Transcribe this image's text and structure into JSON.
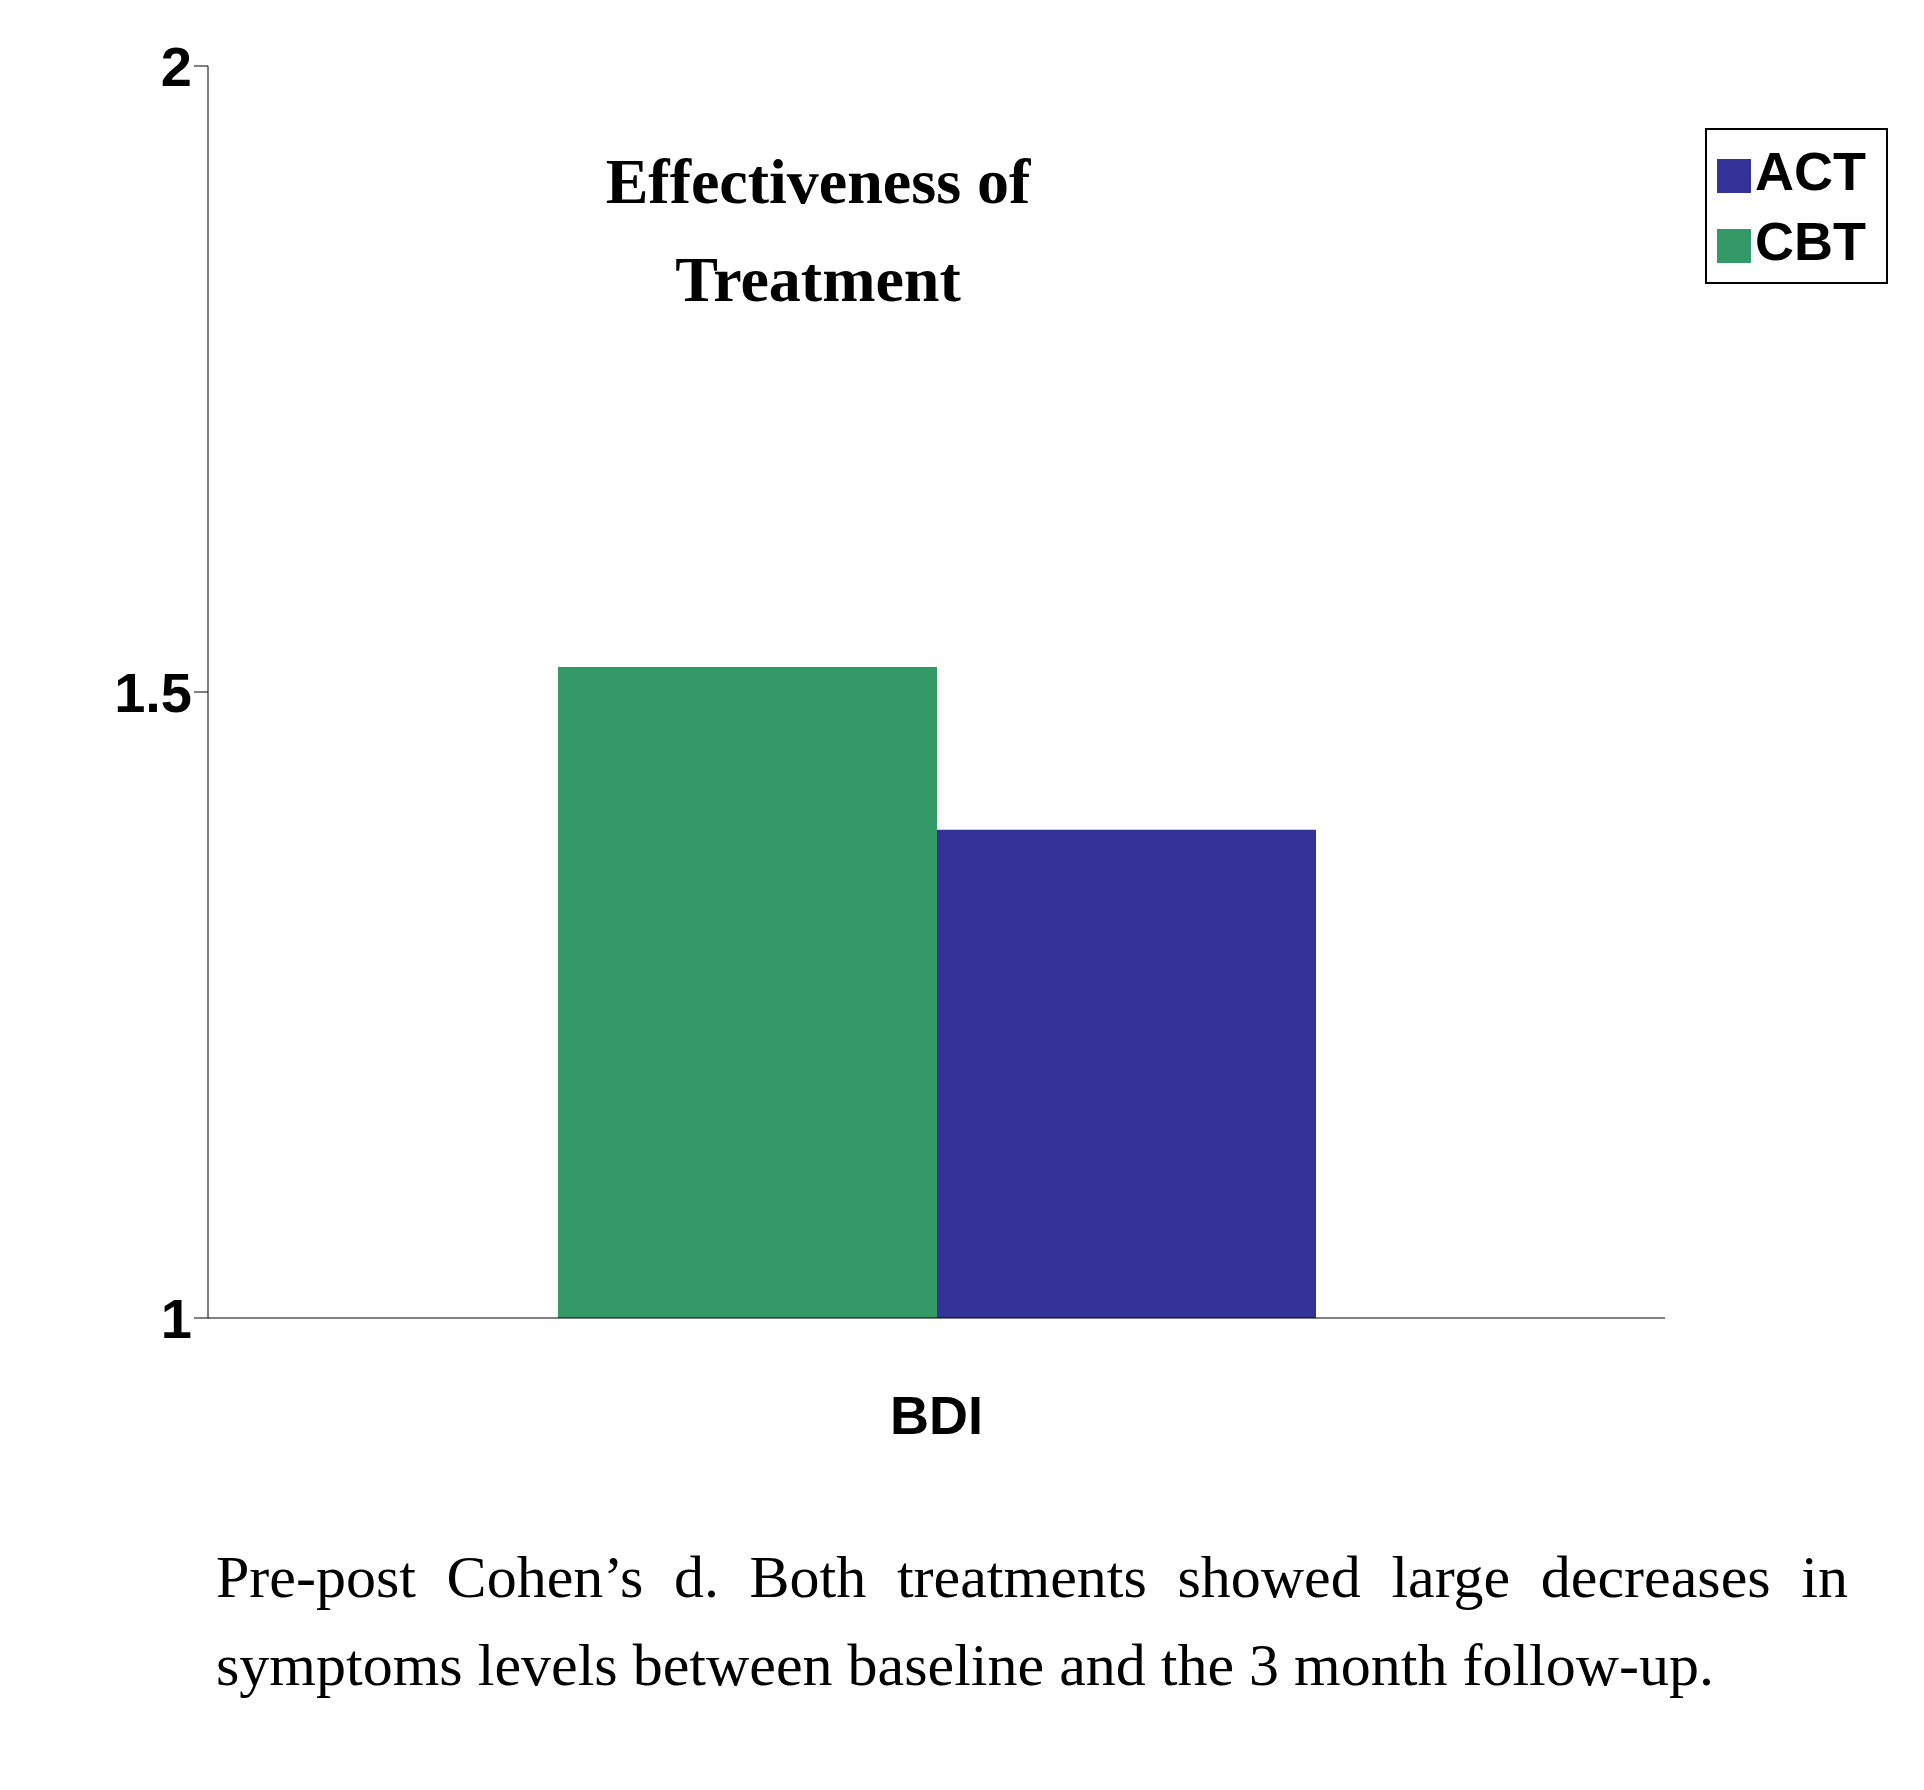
{
  "chart_data": {
    "type": "bar",
    "title": "Effectiveness of Treatment",
    "categories": [
      "BDI"
    ],
    "series": [
      {
        "name": "CBT",
        "color": "#339966",
        "values": [
          1.52
        ]
      },
      {
        "name": "ACT",
        "color": "#333399",
        "values": [
          1.39
        ]
      }
    ],
    "ylim": [
      1,
      2
    ],
    "yticks": [
      1,
      1.5,
      2
    ],
    "grid": false,
    "legend": "top right",
    "annotations": [
      "Pre-post Cohen’s d.  Both treatments showed large decreases in symptoms levels between baseline and the 3 month follow-up."
    ]
  }
}
